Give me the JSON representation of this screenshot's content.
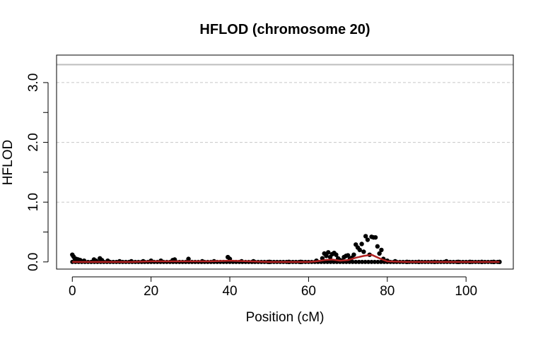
{
  "chart_data": {
    "type": "scatter",
    "title": "HFLOD (chromosome 20)",
    "xlabel": "Position (cM)",
    "ylabel": "HFLOD",
    "xlim": [
      -4,
      112
    ],
    "ylim": [
      -0.12,
      3.46
    ],
    "x_ticks": [
      0,
      20,
      40,
      60,
      80,
      100
    ],
    "x_tick_labels": [
      "0",
      "20",
      "40",
      "60",
      "80",
      "100"
    ],
    "y_ticks": [
      0.0,
      1.0,
      2.0,
      3.0
    ],
    "y_tick_labels": [
      "0.0",
      "1.0",
      "2.0",
      "3.0"
    ],
    "grid": "horizontal dashed at y ticks",
    "threshold_line": {
      "y": 3.3,
      "color": "#bebebe"
    },
    "series": [
      {
        "kind": "points",
        "color": "#000000",
        "x": [
          0.0,
          0.3,
          0.6,
          1.0,
          1.5,
          2.0,
          3.0,
          5.5,
          6.0,
          7.0,
          7.5,
          9.0,
          12.0,
          15.0,
          18.0,
          20.0,
          22.5,
          25.5,
          26.0,
          29.5,
          33.0,
          36.0,
          39.5,
          40.0,
          43.0,
          46.0,
          50.0,
          55.0,
          58.0,
          62.0,
          63.5,
          64.0,
          64.5,
          65.0,
          65.5,
          66.0,
          66.5,
          67.0,
          67.5,
          68.0,
          68.5,
          69.0,
          69.5,
          70.0,
          70.5,
          71.0,
          71.5,
          72.0,
          72.5,
          73.0,
          73.5,
          74.0,
          74.5,
          75.0,
          75.5,
          76.0,
          76.5,
          77.0,
          77.5,
          78.0,
          78.5,
          79.0,
          80.0,
          82.0,
          85.0,
          88.0,
          92.0,
          95.0,
          98.0,
          101.0,
          104.0,
          107.0,
          108.5
        ],
        "y": [
          0.12,
          0.09,
          0.06,
          0.05,
          0.04,
          0.03,
          0.02,
          0.04,
          0.02,
          0.06,
          0.03,
          0.02,
          0.01,
          0.01,
          0.01,
          0.02,
          0.02,
          0.03,
          0.04,
          0.05,
          0.01,
          0.01,
          0.08,
          0.05,
          0.01,
          0.01,
          0.0,
          0.0,
          0.0,
          0.02,
          0.06,
          0.14,
          0.1,
          0.16,
          0.08,
          0.13,
          0.15,
          0.12,
          0.06,
          0.03,
          0.02,
          0.08,
          0.1,
          0.11,
          0.05,
          0.07,
          0.12,
          0.29,
          0.24,
          0.2,
          0.3,
          0.17,
          0.43,
          0.37,
          0.12,
          0.42,
          0.41,
          0.41,
          0.26,
          0.14,
          0.2,
          0.05,
          0.02,
          0.01,
          0.0,
          0.0,
          0.0,
          0.01,
          0.0,
          0.0,
          0.0,
          0.0,
          0.0
        ]
      },
      {
        "kind": "line",
        "color": "#b22222",
        "x": [
          0,
          5,
          10,
          15,
          20,
          25,
          30,
          35,
          40,
          45,
          50,
          55,
          60,
          62,
          64,
          66,
          68,
          70,
          72,
          74,
          76,
          78,
          80,
          85,
          90,
          95,
          100,
          105,
          108.5
        ],
        "y": [
          0.0,
          0.0,
          0.0,
          0.0,
          0.01,
          0.01,
          0.01,
          0.01,
          0.02,
          0.01,
          0.0,
          0.0,
          0.0,
          0.01,
          0.03,
          0.04,
          0.02,
          0.03,
          0.07,
          0.1,
          0.12,
          0.06,
          0.01,
          0.0,
          0.0,
          0.0,
          0.0,
          0.0,
          0.0
        ]
      }
    ]
  }
}
